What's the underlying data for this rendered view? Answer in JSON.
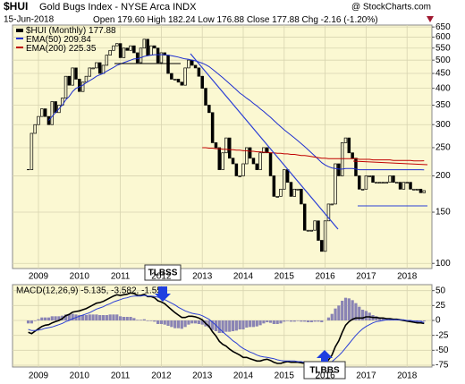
{
  "chart_data": [
    {
      "type": "candlestick",
      "title": "$HUI",
      "subtitle": "Gold Bugs Index - NYSE Arca INDX",
      "credit": "@ StockCharts.com",
      "date": "15-Jun-2018",
      "header": [
        "Open 179.60",
        "High 182.24",
        "Low 176.88",
        "Close 177.88",
        "Chg -2.16 (-1.20%)"
      ],
      "categories": [
        null,
        null,
        null,
        "2009",
        null,
        null,
        null,
        null,
        null,
        null,
        null,
        null,
        null,
        null,
        null,
        "2010",
        null,
        null,
        null,
        null,
        null,
        null,
        null,
        null,
        null,
        null,
        null,
        "2011",
        null,
        null,
        null,
        null,
        null,
        null,
        null,
        null,
        null,
        null,
        null,
        "2012",
        null,
        null,
        null,
        null,
        null,
        null,
        null,
        null,
        null,
        null,
        null,
        "2013",
        null,
        null,
        null,
        null,
        null,
        null,
        null,
        null,
        null,
        null,
        null,
        "2014",
        null,
        null,
        null,
        null,
        null,
        null,
        null,
        null,
        null,
        null,
        null,
        "2015",
        null,
        null,
        null,
        null,
        null,
        null,
        null,
        null,
        null,
        null,
        null,
        "2016",
        null,
        null,
        null,
        null,
        null,
        null,
        null,
        null,
        null,
        null,
        null,
        "2017",
        null,
        null,
        null,
        null,
        null,
        null,
        null,
        null,
        null,
        null,
        null,
        "2018",
        null,
        null,
        null,
        null,
        null
      ],
      "log_scale": true,
      "ylim": [
        96,
        660
      ],
      "yticks": [
        100,
        150,
        200,
        250,
        300,
        350,
        400,
        450,
        500,
        550,
        600,
        650
      ],
      "grid": true,
      "series": [
        {
          "name": "$HUI (Monthly)",
          "color": "#000000",
          "values": [
            210,
            280,
            300,
            320,
            340,
            320,
            300,
            360,
            330,
            350,
            370,
            440,
            410,
            470,
            430,
            390,
            420,
            440,
            470,
            470,
            490,
            450,
            480,
            520,
            540,
            560,
            570,
            510,
            550,
            540,
            560,
            530,
            490,
            550,
            590,
            520,
            560,
            550,
            490,
            530,
            520,
            450,
            430,
            430,
            420,
            410,
            470,
            500,
            480,
            470,
            440,
            400,
            350,
            330,
            260,
            250,
            210,
            240,
            270,
            230,
            220,
            200,
            200,
            220,
            250,
            230,
            220,
            210,
            240,
            250,
            240,
            200,
            170,
            170,
            180,
            210,
            190,
            170,
            180,
            180,
            160,
            130,
            130,
            130,
            140,
            120,
            110,
            140,
            160,
            160,
            220,
            200,
            260,
            270,
            240,
            230,
            200,
            180,
            180,
            200,
            200,
            190,
            190,
            190,
            190,
            190,
            200,
            190,
            190,
            180,
            190,
            190,
            180,
            180,
            180,
            175,
            177.88
          ]
        },
        {
          "name": "EMA(50)",
          "color": "#1f2fd0",
          "values": [
            null,
            null,
            null,
            null,
            null,
            null,
            310,
            320,
            330,
            340,
            350,
            365,
            375,
            390,
            400,
            405,
            410,
            418,
            425,
            432,
            440,
            445,
            450,
            458,
            465,
            472,
            480,
            485,
            490,
            495,
            500,
            505,
            505,
            510,
            515,
            518,
            520,
            522,
            522,
            522,
            522,
            520,
            518,
            515,
            512,
            508,
            505,
            503,
            500,
            497,
            493,
            488,
            482,
            475,
            465,
            455,
            445,
            435,
            425,
            415,
            405,
            395,
            385,
            378,
            370,
            363,
            355,
            348,
            340,
            333,
            325,
            318,
            310,
            302,
            295,
            288,
            282,
            276,
            270,
            264,
            258,
            252,
            246,
            240,
            234,
            228,
            222,
            218,
            215,
            213,
            212,
            211,
            211,
            212,
            212,
            212,
            211,
            210,
            210,
            210,
            210,
            210,
            210,
            210,
            210,
            210,
            210,
            210,
            210,
            210,
            210,
            210,
            210,
            210,
            210,
            210,
            209.84
          ]
        },
        {
          "name": "EMA(200)",
          "color": "#c00000",
          "values": [
            null,
            null,
            null,
            null,
            null,
            null,
            null,
            null,
            null,
            null,
            null,
            null,
            null,
            null,
            null,
            null,
            null,
            null,
            null,
            null,
            null,
            null,
            null,
            null,
            null,
            null,
            null,
            null,
            null,
            null,
            null,
            null,
            null,
            null,
            null,
            null,
            null,
            null,
            null,
            null,
            null,
            null,
            null,
            null,
            null,
            null,
            null,
            null,
            null,
            null,
            null,
            250,
            250,
            249,
            249,
            248,
            248,
            247,
            247,
            246,
            246,
            245,
            245,
            244,
            244,
            243,
            243,
            242,
            242,
            241,
            241,
            240,
            240,
            239,
            239,
            238,
            238,
            237,
            237,
            236,
            235,
            235,
            234,
            233,
            232,
            231,
            230,
            230,
            229,
            229,
            229,
            229,
            229,
            229,
            229,
            229,
            229,
            228,
            228,
            228,
            228,
            227,
            227,
            227,
            227,
            227,
            227,
            226,
            226,
            226,
            226,
            226,
            226,
            225,
            225,
            225,
            225.35
          ]
        }
      ],
      "annotations": [
        "TLBSS"
      ]
    },
    {
      "type": "macd",
      "legend": "MACD(12,26,9) -5.135, -3.582, -1.553",
      "ylim": [
        -78,
        60
      ],
      "yticks": [
        50,
        25,
        0,
        -25,
        -50,
        -75
      ],
      "grid": true,
      "series": [
        {
          "name": "MACD(12,26,9)",
          "color": "#000000",
          "values": [
            -20,
            -22,
            -18,
            -14,
            -10,
            -8,
            -7,
            -4,
            -2,
            0,
            3,
            8,
            10,
            14,
            15,
            16,
            18,
            20,
            23,
            26,
            29,
            30,
            32,
            35,
            38,
            41,
            43,
            42,
            43,
            44,
            46,
            45,
            42,
            42,
            44,
            40,
            40,
            38,
            33,
            31,
            28,
            23,
            18,
            13,
            9,
            5,
            5,
            7,
            7,
            6,
            4,
            1,
            -5,
            -10,
            -19,
            -26,
            -35,
            -40,
            -43,
            -48,
            -52,
            -55,
            -58,
            -62,
            -62,
            -64,
            -66,
            -68,
            -68,
            -66,
            -65,
            -67,
            -70,
            -72,
            -72,
            -70,
            -69,
            -70,
            -70,
            -70,
            -71,
            -72,
            -73,
            -74,
            -73,
            -74,
            -75,
            -72,
            -66,
            -58,
            -44,
            -34,
            -20,
            -8,
            -2,
            2,
            4,
            4,
            4,
            6,
            6,
            5,
            5,
            4,
            4,
            3,
            3,
            2,
            2,
            1,
            0,
            -1,
            -2,
            -3,
            -4,
            -4,
            -5.135
          ]
        },
        {
          "color": "#2b3fd6",
          "values": [
            -15,
            -17,
            -17,
            -16,
            -15,
            -13,
            -12,
            -11,
            -9,
            -7,
            -5,
            -2,
            0,
            3,
            5,
            7,
            9,
            11,
            13,
            16,
            19,
            21,
            23,
            26,
            28,
            31,
            33,
            35,
            37,
            38,
            40,
            41,
            41,
            41,
            42,
            41,
            41,
            40,
            39,
            37,
            35,
            32,
            29,
            26,
            22,
            19,
            16,
            14,
            12,
            11,
            10,
            8,
            5,
            2,
            -3,
            -8,
            -14,
            -19,
            -24,
            -29,
            -34,
            -38,
            -43,
            -47,
            -50,
            -53,
            -55,
            -58,
            -60,
            -61,
            -62,
            -63,
            -64,
            -66,
            -67,
            -68,
            -68,
            -68,
            -68,
            -69,
            -69,
            -70,
            -70,
            -71,
            -71,
            -72,
            -72,
            -72,
            -71,
            -69,
            -64,
            -59,
            -53,
            -46,
            -39,
            -32,
            -25,
            -19,
            -14,
            -10,
            -7,
            -4,
            -2,
            -1,
            0,
            1,
            1,
            1,
            1,
            1,
            1,
            0,
            0,
            -1,
            -1,
            -2,
            -3.582
          ]
        },
        {
          "type": "bar",
          "color": "#8a84b4",
          "values": [
            -5,
            -5,
            -1,
            2,
            5,
            5,
            5,
            7,
            7,
            7,
            8,
            10,
            10,
            11,
            10,
            9,
            9,
            9,
            10,
            10,
            10,
            9,
            9,
            9,
            10,
            10,
            10,
            7,
            6,
            6,
            6,
            4,
            1,
            1,
            2,
            -1,
            -1,
            -2,
            -6,
            -6,
            -7,
            -9,
            -11,
            -13,
            -13,
            -14,
            -11,
            -7,
            -5,
            -5,
            -6,
            -7,
            -10,
            -12,
            -16,
            -18,
            -21,
            -21,
            -19,
            -19,
            -18,
            -17,
            -15,
            -15,
            -12,
            -11,
            -11,
            -10,
            -8,
            -5,
            -3,
            -4,
            -6,
            -6,
            -5,
            -2,
            -1,
            -2,
            -2,
            -1,
            -2,
            -2,
            -3,
            -3,
            -2,
            -2,
            -3,
            0,
            5,
            11,
            20,
            25,
            33,
            38,
            37,
            34,
            29,
            23,
            18,
            16,
            13,
            9,
            7,
            5,
            4,
            2,
            2,
            1,
            1,
            0,
            -1,
            -1,
            -2,
            -2,
            -3,
            -2,
            -1.553
          ]
        }
      ],
      "annotations": [
        "TLBBS"
      ]
    }
  ]
}
